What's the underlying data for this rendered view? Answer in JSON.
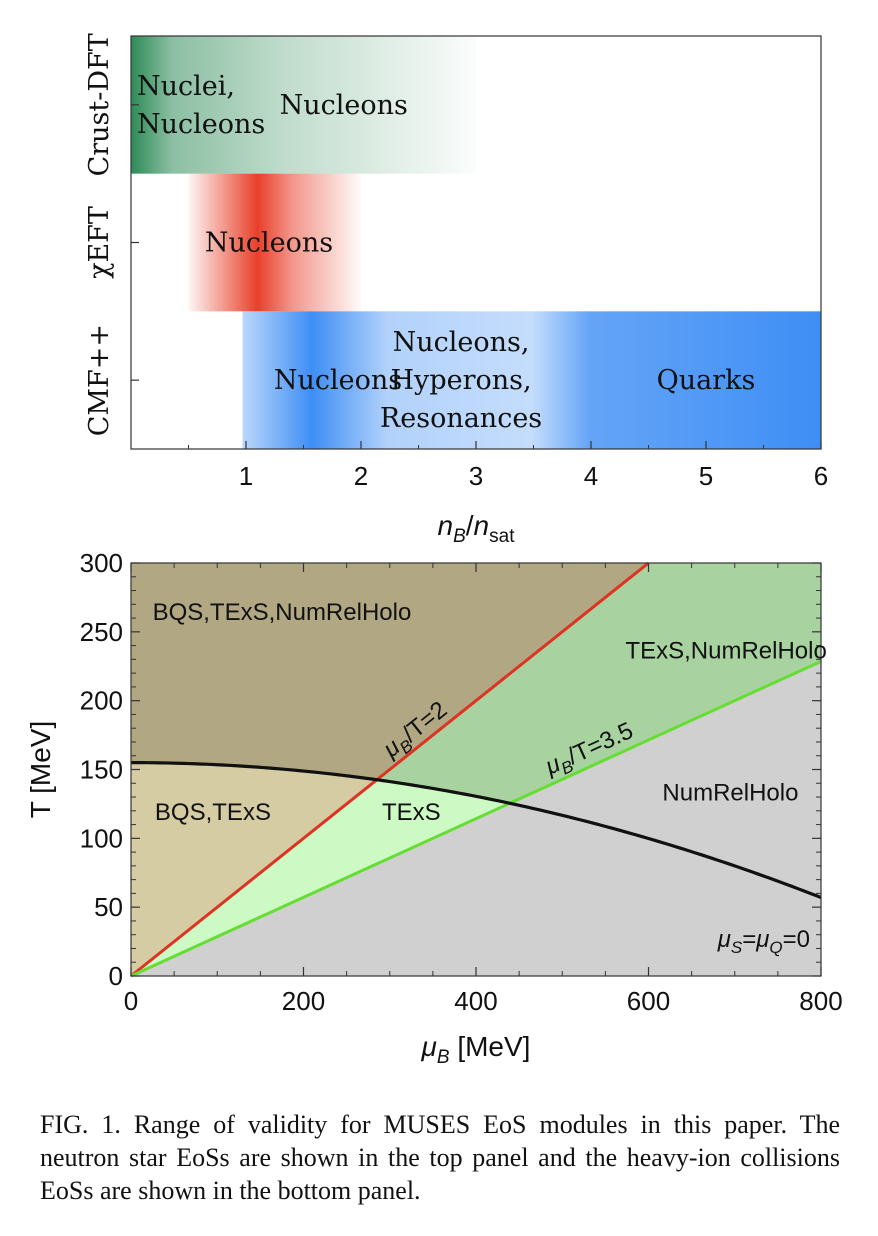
{
  "chart_data": [
    {
      "type": "bar",
      "panel": "top",
      "xlabel_main": "n",
      "xlabel_sub1": "B",
      "xlabel_slash": "/",
      "xlabel_main2": "n",
      "xlabel_sub2": "sat",
      "xlim": [
        0,
        6
      ],
      "xticks": [
        1,
        2,
        3,
        4,
        5,
        6
      ],
      "rows": [
        {
          "label": "Crust-DFT",
          "range": [
            0,
            3
          ],
          "color": "#2e8b57",
          "regions": [
            {
              "lines": [
                "Nuclei,",
                "Nucleons"
              ],
              "x": 0.5
            },
            {
              "lines": [
                "Nucleons"
              ],
              "x": 1.85
            }
          ]
        },
        {
          "label": "χEFT",
          "range": [
            0.5,
            2
          ],
          "color": "#e8402a",
          "regions": [
            {
              "lines": [
                "Nucleons"
              ],
              "x": 1.2
            }
          ]
        },
        {
          "label": "CMF++",
          "range": [
            0.97,
            6
          ],
          "color": "#3e8ef5",
          "regions": [
            {
              "lines": [
                "Nucleons"
              ],
              "x": 1.8
            },
            {
              "lines": [
                "Nucleons,",
                "Hyperons,",
                "Resonances"
              ],
              "x": 2.87
            },
            {
              "lines": [
                "Quarks"
              ],
              "x": 5.0
            }
          ]
        }
      ]
    },
    {
      "type": "area",
      "panel": "bottom",
      "xlabel": "μ",
      "xlabel_sub": "B",
      "xlabel_unit": " [MeV]",
      "ylabel": "T [MeV]",
      "xlim": [
        0,
        800
      ],
      "ylim": [
        0,
        300
      ],
      "xticks": [
        0,
        200,
        400,
        600,
        800
      ],
      "yticks": [
        0,
        50,
        100,
        150,
        200,
        250,
        300
      ],
      "crossover_curve": {
        "T0": 155,
        "T_at_800": 57
      },
      "lines": [
        {
          "label_main": "μ",
          "label_sub": "B",
          "label_rest": "/T=2",
          "ratio": 2,
          "color": "#dd3322"
        },
        {
          "label_main": "μ",
          "label_sub": "B",
          "label_rest": "/T=3.5",
          "ratio": 3.5,
          "color": "#66dd33"
        }
      ],
      "region_labels": [
        {
          "text": "BQS,TExS,NumRelHolo",
          "x": 175,
          "y": 265
        },
        {
          "text": "TExS,NumRelHolo",
          "x": 690,
          "y": 237
        },
        {
          "text": "BQS,TExS",
          "x": 95,
          "y": 120
        },
        {
          "text": "TExS",
          "x": 325,
          "y": 120
        },
        {
          "text": "NumRelHolo",
          "x": 695,
          "y": 134
        }
      ],
      "region_colors": {
        "above_ratio2": "#b2a783",
        "between_above_curve": "#a8d3a0",
        "below_curve_right": "#d0d0d0",
        "below_curve_left": "#d5cca4",
        "below_curve_between": "#ccf9c4"
      },
      "annotation": {
        "m1": "μ",
        "s1": "S",
        "eq": "=",
        "m2": "μ",
        "s2": "Q",
        "rest": "=0"
      }
    }
  ],
  "caption": "FIG. 1.  Range of validity for MUSES EoS modules in this paper. The neutron star EoSs are shown in the top panel and the heavy-ion collisions EoSs are shown in the bottom panel."
}
